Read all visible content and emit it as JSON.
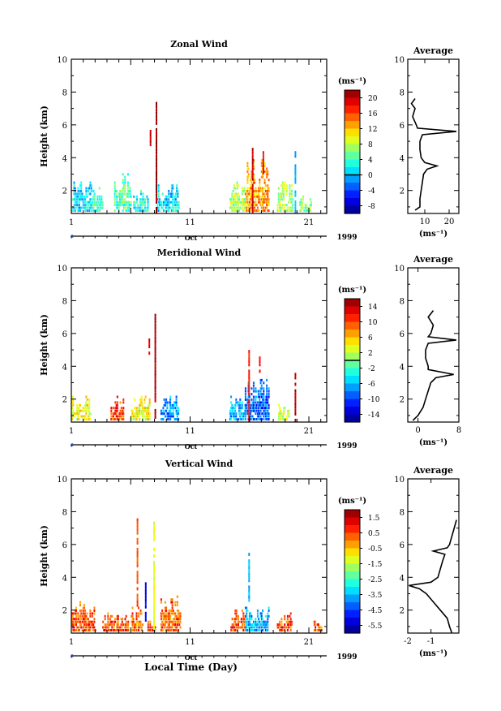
{
  "figure": {
    "shared_x_label": "Local Time (Day)",
    "date_label": "Oct",
    "year_label": "1999"
  },
  "chart_data": [
    {
      "type": "heatmap",
      "title": "Zonal Wind",
      "ylabel": "Height (km)",
      "ylim": [
        0.6,
        10
      ],
      "yticks": [
        2,
        4,
        6,
        8,
        10
      ],
      "xlim": [
        1,
        22.5
      ],
      "xticks": [
        1,
        11,
        21
      ],
      "colorbar": {
        "label": "(ms⁻¹)",
        "ticks": [
          "20",
          "16",
          "12",
          "8",
          "4",
          "0",
          "-4",
          "-8"
        ],
        "range": [
          -10,
          22
        ],
        "zero_line": 0
      },
      "clusters": [
        {
          "t0": 1.0,
          "t1": 2.8,
          "h1": 2.6,
          "level": 0.35
        },
        {
          "t0": 2.8,
          "t1": 3.6,
          "h1": 2.1,
          "level": 0.45
        },
        {
          "t0": 4.6,
          "t1": 6.0,
          "h1": 3.1,
          "level": 0.45
        },
        {
          "t0": 6.2,
          "t1": 7.4,
          "h1": 2.0,
          "level": 0.4
        },
        {
          "t0": 8.2,
          "t1": 10.0,
          "h1": 2.4,
          "level": 0.35
        },
        {
          "t0": 14.3,
          "t1": 15.6,
          "h1": 2.5,
          "level": 0.55
        },
        {
          "t0": 15.6,
          "t1": 17.6,
          "h1": 4.0,
          "level": 0.72
        },
        {
          "t0": 18.3,
          "t1": 19.6,
          "h1": 2.6,
          "level": 0.55
        },
        {
          "t0": 20.2,
          "t1": 21.2,
          "h1": 1.8,
          "level": 0.5
        }
      ],
      "spikes": [
        {
          "t": 8.1,
          "h0": 0.6,
          "h1": 7.3,
          "level": 0.97
        },
        {
          "t": 7.6,
          "h0": 4.7,
          "h1": 5.8,
          "level": 0.92
        },
        {
          "t": 16.2,
          "h0": 0.6,
          "h1": 4.9,
          "level": 0.92
        },
        {
          "t": 17.1,
          "h0": 3.0,
          "h1": 4.4,
          "level": 0.88
        },
        {
          "t": 19.8,
          "h0": 0.6,
          "h1": 4.3,
          "level": 0.3
        }
      ],
      "average": {
        "xlim": [
          3,
          24
        ],
        "xticks": [
          10,
          20
        ],
        "xlabel": "(ms⁻¹)",
        "title": "Average",
        "height": [
          0.8,
          1.0,
          1.5,
          2.0,
          2.5,
          3.0,
          3.3,
          3.5,
          3.7,
          4.0,
          4.5,
          5.0,
          5.4,
          5.6,
          5.8,
          6.0,
          6.5,
          7.0,
          7.3,
          7.6
        ],
        "speed": [
          6,
          8,
          8,
          8.5,
          9,
          9.5,
          11,
          15,
          10,
          8.5,
          8,
          8,
          9,
          23,
          7,
          6.5,
          5,
          6,
          4.5,
          6
        ]
      }
    },
    {
      "type": "heatmap",
      "title": "Meridional Wind",
      "ylabel": "Height (km)",
      "ylim": [
        0.6,
        10
      ],
      "yticks": [
        2,
        4,
        6,
        8,
        10
      ],
      "xlim": [
        1,
        22.5
      ],
      "xticks": [
        1,
        11,
        21
      ],
      "colorbar": {
        "label": "(ms⁻¹)",
        "ticks": [
          "14",
          "10",
          "6",
          "2",
          "-2",
          "-6",
          "-10",
          "-14"
        ],
        "range": [
          -16,
          16
        ],
        "zero_line": 0
      },
      "clusters": [
        {
          "t0": 1.0,
          "t1": 2.6,
          "h1": 2.3,
          "level": 0.62
        },
        {
          "t0": 4.3,
          "t1": 5.4,
          "h1": 2.2,
          "level": 0.82
        },
        {
          "t0": 6.0,
          "t1": 7.6,
          "h1": 2.2,
          "level": 0.62
        },
        {
          "t0": 8.5,
          "t1": 10.0,
          "h1": 2.2,
          "level": 0.28
        },
        {
          "t0": 14.3,
          "t1": 15.6,
          "h1": 2.2,
          "level": 0.3
        },
        {
          "t0": 15.6,
          "t1": 17.6,
          "h1": 3.2,
          "level": 0.22
        },
        {
          "t0": 18.4,
          "t1": 19.3,
          "h1": 2.0,
          "level": 0.55
        }
      ],
      "spikes": [
        {
          "t": 8.0,
          "h0": 0.6,
          "h1": 7.2,
          "level": 0.96
        },
        {
          "t": 7.5,
          "h0": 4.7,
          "h1": 5.6,
          "level": 0.9
        },
        {
          "t": 15.9,
          "h0": 0.6,
          "h1": 5.0,
          "level": 0.84
        },
        {
          "t": 16.8,
          "h0": 3.6,
          "h1": 4.5,
          "level": 0.9
        },
        {
          "t": 19.8,
          "h0": 0.6,
          "h1": 3.6,
          "level": 0.95
        }
      ],
      "average": {
        "xlim": [
          -2,
          8
        ],
        "xticks": [
          0,
          8
        ],
        "xlabel": "(ms⁻¹)",
        "title": "Average",
        "height": [
          0.7,
          1.0,
          1.5,
          2.0,
          2.5,
          3.0,
          3.3,
          3.5,
          3.8,
          4.0,
          4.5,
          5.0,
          5.4,
          5.6,
          5.8,
          6.0,
          6.5,
          7.0,
          7.4
        ],
        "speed": [
          -1,
          0,
          1,
          1.5,
          2,
          2.5,
          3.5,
          7,
          2,
          2,
          1.5,
          1.5,
          2,
          7.5,
          2,
          2.5,
          3,
          2,
          3
        ]
      }
    },
    {
      "type": "heatmap",
      "title": "Vertical Wind",
      "ylabel": "Height (km)",
      "ylim": [
        0.6,
        10
      ],
      "yticks": [
        2,
        4,
        6,
        8,
        10
      ],
      "xlim": [
        1,
        22.5
      ],
      "xticks": [
        1,
        11,
        21
      ],
      "xlabel": "Local Time (Day)",
      "colorbar": {
        "label": "(ms⁻¹)",
        "ticks": [
          "1.5",
          "0.5",
          "-0.5",
          "-1.5",
          "-2.5",
          "-3.5",
          "-4.5",
          "-5.5"
        ],
        "range": [
          -6,
          2
        ]
      },
      "clusters": [
        {
          "t0": 1.0,
          "t1": 3.0,
          "h1": 2.6,
          "level": 0.8
        },
        {
          "t0": 3.6,
          "t1": 5.8,
          "h1": 2.0,
          "level": 0.8
        },
        {
          "t0": 6.0,
          "t1": 7.0,
          "h1": 2.2,
          "level": 0.78
        },
        {
          "t0": 7.4,
          "t1": 8.0,
          "h1": 1.6,
          "level": 0.8
        },
        {
          "t0": 8.5,
          "t1": 10.2,
          "h1": 2.9,
          "level": 0.78
        },
        {
          "t0": 14.4,
          "t1": 15.6,
          "h1": 2.0,
          "level": 0.8
        },
        {
          "t0": 15.6,
          "t1": 17.6,
          "h1": 2.4,
          "level": 0.3
        },
        {
          "t0": 18.3,
          "t1": 19.5,
          "h1": 2.0,
          "level": 0.8
        },
        {
          "t0": 21.4,
          "t1": 22.0,
          "h1": 1.6,
          "level": 0.8
        }
      ],
      "spikes": [
        {
          "t": 7.9,
          "h0": 0.6,
          "h1": 7.4,
          "level": 0.6
        },
        {
          "t": 6.5,
          "h0": 2.0,
          "h1": 7.6,
          "level": 0.8
        },
        {
          "t": 15.9,
          "h0": 2.5,
          "h1": 5.5,
          "level": 0.3
        },
        {
          "t": 7.2,
          "h0": 1.3,
          "h1": 3.6,
          "level": 0.12
        }
      ],
      "average": {
        "xlim": [
          -2,
          0.2
        ],
        "xticks": [
          -2,
          -1
        ],
        "xlabel": "(ms⁻¹)",
        "title": "Average",
        "height": [
          0.6,
          1.0,
          1.5,
          2.0,
          2.5,
          3.0,
          3.3,
          3.5,
          3.7,
          4.0,
          4.5,
          5.0,
          5.4,
          5.6,
          5.8,
          6.0,
          6.5,
          7.0,
          7.5
        ],
        "speed": [
          -0.1,
          -0.2,
          -0.3,
          -0.6,
          -0.9,
          -1.2,
          -1.5,
          -1.95,
          -1.0,
          -0.7,
          -0.6,
          -0.5,
          -0.4,
          -0.9,
          -0.3,
          -0.2,
          -0.1,
          0.0,
          0.1
        ]
      }
    }
  ]
}
